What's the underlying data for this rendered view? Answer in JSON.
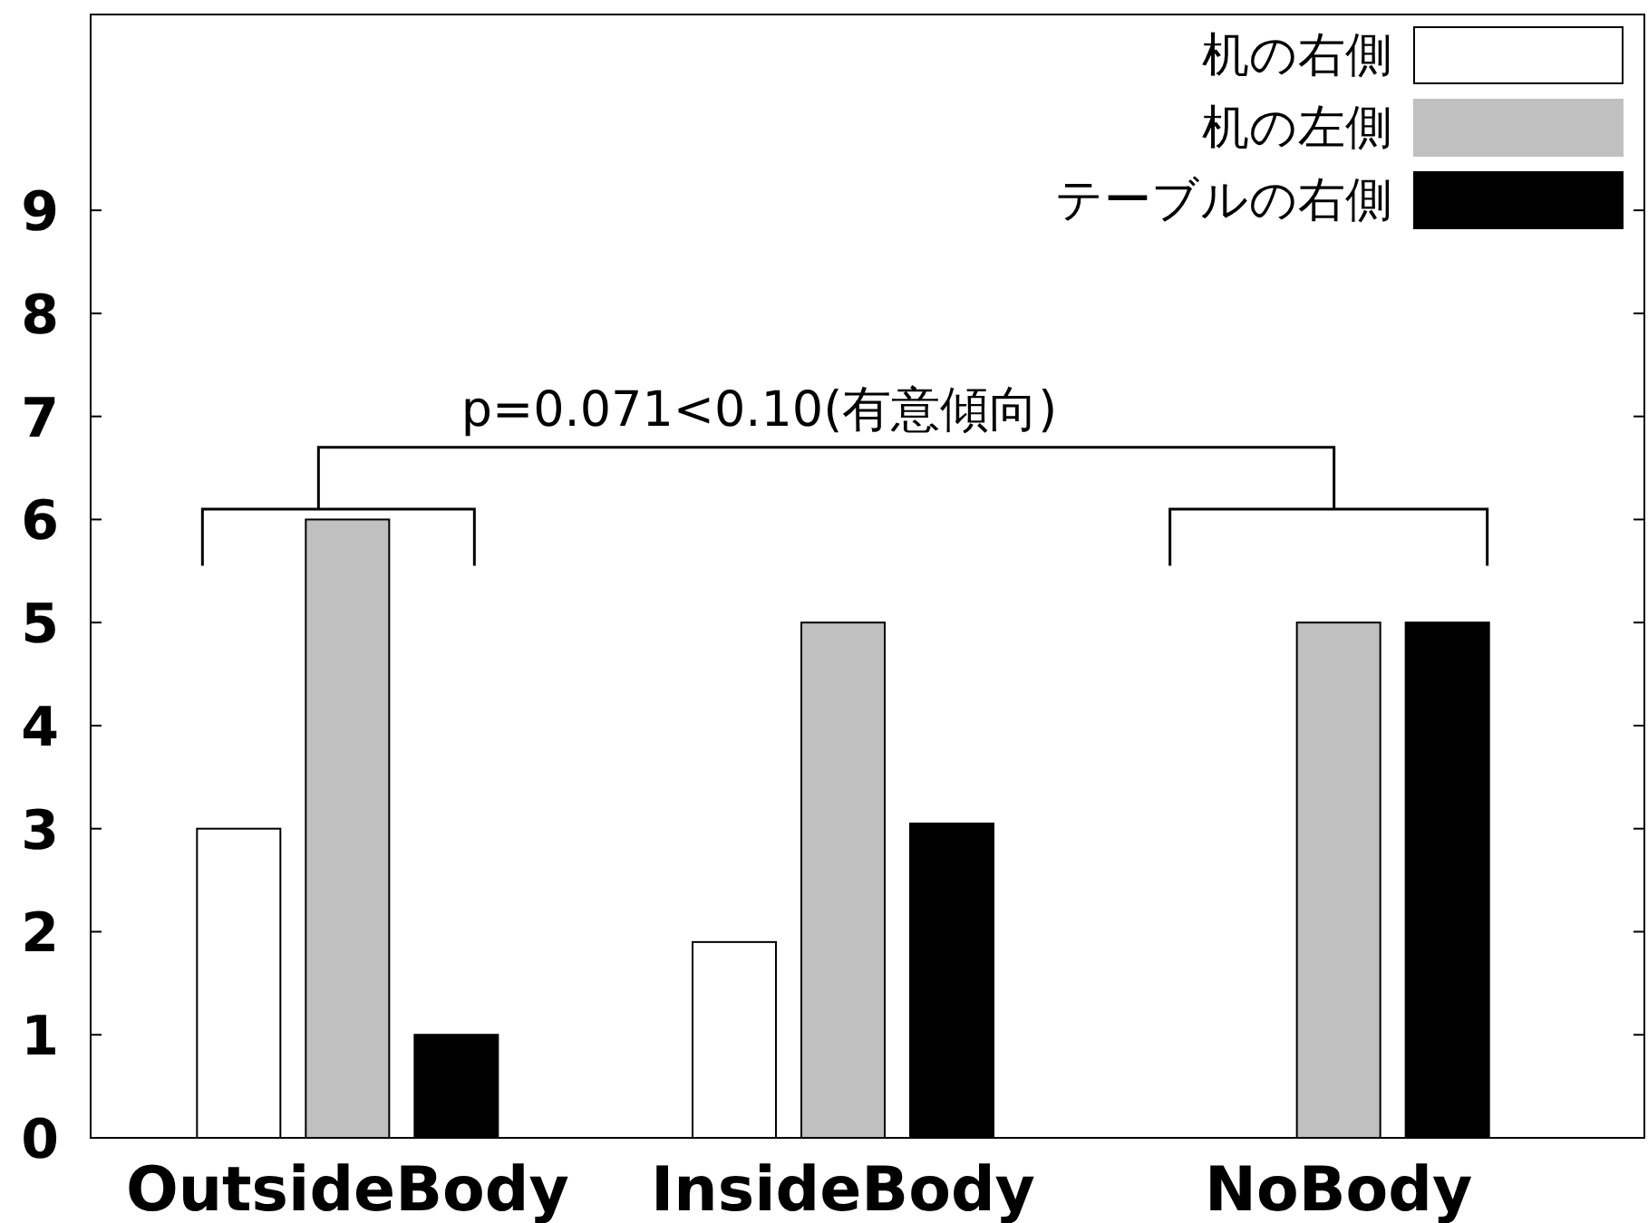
{
  "chart_data": {
    "type": "bar",
    "categories": [
      "OutsideBody",
      "InsideBody",
      "NoBody"
    ],
    "series": [
      {
        "name": "机の右側",
        "color": "#ffffff",
        "values": [
          3,
          1.9,
          0
        ]
      },
      {
        "name": "机の左側",
        "color": "#c0c0c0",
        "values": [
          6,
          5,
          5
        ]
      },
      {
        "name": "テーブルの右側",
        "color": "#000000",
        "values": [
          1,
          3.05,
          5
        ]
      }
    ],
    "ylim": [
      0,
      10.9
    ],
    "yticks": [
      0,
      1,
      2,
      3,
      4,
      5,
      6,
      7,
      8,
      9
    ],
    "grid": false,
    "legend": "top right",
    "annotations": [
      "p=0.071<0.10(有意傾向)"
    ]
  }
}
